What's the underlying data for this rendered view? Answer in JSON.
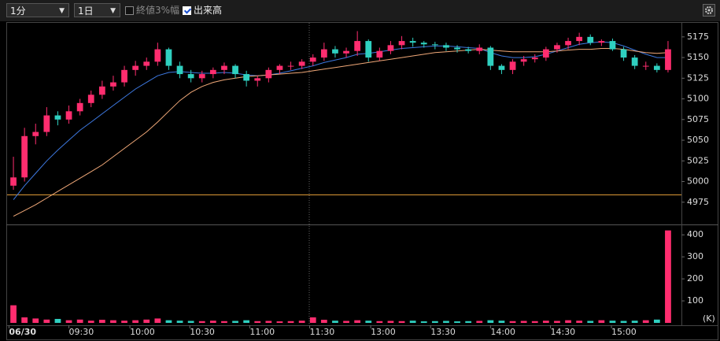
{
  "toolbar": {
    "interval_select": "1分",
    "period_select": "1日",
    "scale_option": {
      "label": "終値3%幅",
      "checked": false
    },
    "volume_option": {
      "label": "出来高",
      "checked": true
    }
  },
  "chart_data": {
    "type": "candlestick",
    "xlim": [
      0,
      60
    ],
    "xticks": [
      {
        "value": 0.1,
        "label": "06/30"
      },
      {
        "value": 5.5,
        "label": "09:30"
      },
      {
        "value": 11,
        "label": "10:00"
      },
      {
        "value": 16.4,
        "label": "10:30"
      },
      {
        "value": 21.8,
        "label": "11:00"
      },
      {
        "value": 27.2,
        "label": "11:30"
      },
      {
        "value": 32.7,
        "label": "13:00"
      },
      {
        "value": 38.1,
        "label": "13:30"
      },
      {
        "value": 43.5,
        "label": "14:00"
      },
      {
        "value": 48.9,
        "label": "14:30"
      },
      {
        "value": 54.4,
        "label": "15:00"
      }
    ],
    "ylim": [
      4950,
      5192
    ],
    "yticks": [
      4975,
      5000,
      5025,
      5050,
      5075,
      5100,
      5125,
      5150,
      5175
    ],
    "up_color": "#ff2d6f",
    "down_color": "#2fd0c0",
    "open": [
      4995,
      5005,
      5055,
      5060,
      5080,
      5075,
      5085,
      5095,
      5105,
      5115,
      5120,
      5135,
      5140,
      5145,
      5160,
      5140,
      5130,
      5125,
      5130,
      5135,
      5140,
      5130,
      5122,
      5125,
      5135,
      5140,
      5140,
      5145,
      5150,
      5160,
      5155,
      5158,
      5170,
      5150,
      5158,
      5165,
      5170,
      5168,
      5166,
      5165,
      5162,
      5160,
      5158,
      5162,
      5140,
      5135,
      5145,
      5148,
      5150,
      5160,
      5165,
      5170,
      5175,
      5168,
      5170,
      5160,
      5150,
      5140,
      5140,
      5135
    ],
    "high": [
      5030,
      5065,
      5070,
      5090,
      5085,
      5092,
      5100,
      5110,
      5122,
      5128,
      5140,
      5146,
      5150,
      5168,
      5162,
      5145,
      5135,
      5134,
      5138,
      5144,
      5142,
      5134,
      5128,
      5138,
      5142,
      5145,
      5148,
      5154,
      5168,
      5164,
      5162,
      5182,
      5172,
      5162,
      5170,
      5176,
      5174,
      5170,
      5169,
      5168,
      5165,
      5163,
      5166,
      5164,
      5142,
      5148,
      5152,
      5154,
      5163,
      5168,
      5174,
      5180,
      5178,
      5172,
      5173,
      5163,
      5153,
      5145,
      5143,
      5170
    ],
    "low": [
      4990,
      5000,
      5045,
      5055,
      5068,
      5070,
      5080,
      5090,
      5100,
      5110,
      5115,
      5128,
      5135,
      5140,
      5135,
      5125,
      5120,
      5120,
      5125,
      5130,
      5125,
      5115,
      5115,
      5120,
      5130,
      5135,
      5136,
      5140,
      5146,
      5150,
      5150,
      5152,
      5145,
      5146,
      5154,
      5160,
      5163,
      5162,
      5160,
      5158,
      5156,
      5155,
      5154,
      5135,
      5130,
      5130,
      5140,
      5144,
      5146,
      5156,
      5160,
      5165,
      5165,
      5164,
      5158,
      5146,
      5136,
      5135,
      5132,
      5132
    ],
    "close": [
      5005,
      5055,
      5060,
      5080,
      5075,
      5085,
      5095,
      5105,
      5115,
      5120,
      5135,
      5140,
      5145,
      5160,
      5140,
      5130,
      5125,
      5130,
      5135,
      5140,
      5130,
      5122,
      5125,
      5135,
      5140,
      5140,
      5145,
      5150,
      5160,
      5155,
      5158,
      5170,
      5150,
      5158,
      5165,
      5170,
      5168,
      5166,
      5165,
      5162,
      5160,
      5158,
      5162,
      5140,
      5135,
      5145,
      5148,
      5150,
      5160,
      5165,
      5170,
      5175,
      5168,
      5170,
      5160,
      5150,
      5140,
      5140,
      5135,
      5160
    ],
    "moving_averages": [
      {
        "color": "#3d78e0",
        "values": [
          4978,
          4995,
          5010,
          5025,
          5038,
          5050,
          5062,
          5072,
          5082,
          5092,
          5102,
          5112,
          5120,
          5128,
          5132,
          5133,
          5132,
          5131,
          5131,
          5132,
          5131,
          5129,
          5128,
          5129,
          5131,
          5134,
          5137,
          5140,
          5144,
          5147,
          5150,
          5154,
          5155,
          5157,
          5159,
          5161,
          5162,
          5163,
          5164,
          5164,
          5163,
          5162,
          5161,
          5156,
          5152,
          5150,
          5150,
          5151,
          5154,
          5158,
          5162,
          5166,
          5168,
          5169,
          5168,
          5164,
          5159,
          5154,
          5150,
          5150
        ]
      },
      {
        "color": "#f0a878",
        "values": [
          4958,
          4965,
          4972,
          4980,
          4988,
          4996,
          5004,
          5012,
          5020,
          5030,
          5040,
          5050,
          5060,
          5072,
          5085,
          5098,
          5108,
          5115,
          5120,
          5123,
          5125,
          5127,
          5128,
          5129,
          5130,
          5131,
          5132,
          5134,
          5136,
          5138,
          5140,
          5142,
          5144,
          5146,
          5148,
          5150,
          5152,
          5154,
          5156,
          5157,
          5158,
          5159,
          5160,
          5159,
          5158,
          5157,
          5157,
          5157,
          5157,
          5158,
          5159,
          5160,
          5160,
          5161,
          5161,
          5160,
          5158,
          5156,
          5155,
          5156
        ]
      }
    ],
    "reference_line": {
      "value": 4984,
      "color": "#e8a33a"
    },
    "volume": {
      "ylim": [
        0,
        440
      ],
      "yticks": [
        100,
        200,
        300,
        400
      ],
      "unit_label": "(K)",
      "values": [
        80,
        25,
        20,
        15,
        18,
        12,
        15,
        10,
        14,
        12,
        10,
        12,
        15,
        20,
        12,
        10,
        9,
        8,
        10,
        8,
        9,
        12,
        8,
        9,
        7,
        8,
        10,
        25,
        14,
        10,
        9,
        12,
        10,
        8,
        9,
        8,
        10,
        7,
        8,
        9,
        7,
        8,
        9,
        12,
        10,
        8,
        9,
        8,
        10,
        9,
        12,
        10,
        9,
        12,
        10,
        9,
        10,
        12,
        15,
        420
      ]
    }
  }
}
